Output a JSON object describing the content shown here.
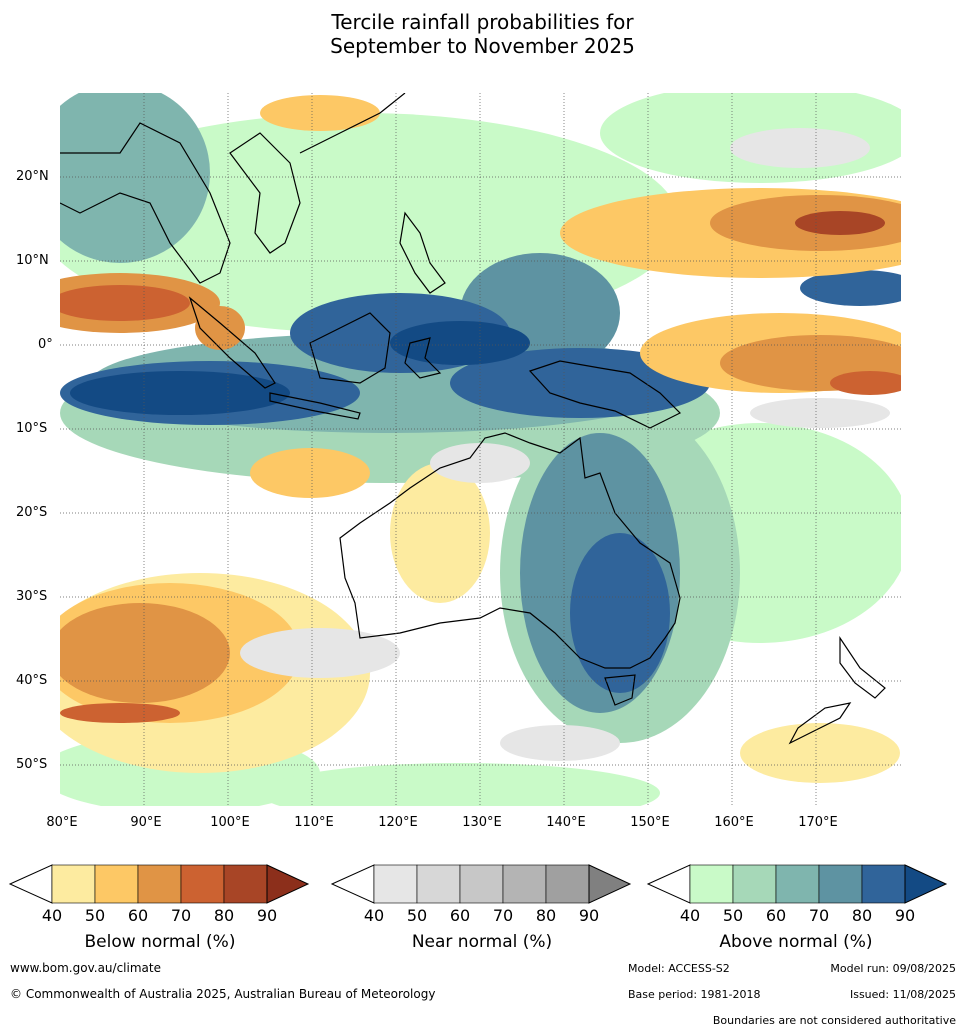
{
  "title": {
    "line1": "Tercile rainfall probabilities for",
    "line2": "September to November 2025"
  },
  "axes": {
    "lat_labels": [
      "20°N",
      "10°N",
      "0°",
      "10°S",
      "20°S",
      "30°S",
      "40°S",
      "50°S"
    ],
    "lon_labels": [
      "80°E",
      "90°E",
      "100°E",
      "110°E",
      "120°E",
      "130°E",
      "140°E",
      "150°E",
      "160°E",
      "170°E"
    ]
  },
  "legend": {
    "ticks": [
      "40",
      "50",
      "60",
      "70",
      "80",
      "90"
    ],
    "below": {
      "label": "Below normal (%)",
      "colors": [
        "#fdeba0",
        "#fdc865",
        "#e09445",
        "#cc6231",
        "#a84526",
        "#8c2f1b"
      ]
    },
    "near": {
      "label": "Near normal (%)",
      "colors": [
        "#e6e6e6",
        "#d7d7d7",
        "#c7c7c7",
        "#b4b4b4",
        "#a0a0a0",
        "#808080"
      ]
    },
    "above": {
      "label": "Above normal (%)",
      "colors": [
        "#c9fac8",
        "#a6d8b8",
        "#7fb5ae",
        "#5e93a2",
        "#30649a",
        "#134a84"
      ]
    }
  },
  "footer": {
    "website": "www.bom.gov.au/climate",
    "copyright": "© Commonwealth of Australia 2025, Australian Bureau of Meteorology",
    "model": "Model: ACCESS-S2",
    "model_run": "Model run: 09/08/2025",
    "base_period": "Base period: 1981-2018",
    "issued": "Issued: 11/08/2025",
    "disclaimer": "Boundaries are not considered authoritative"
  }
}
